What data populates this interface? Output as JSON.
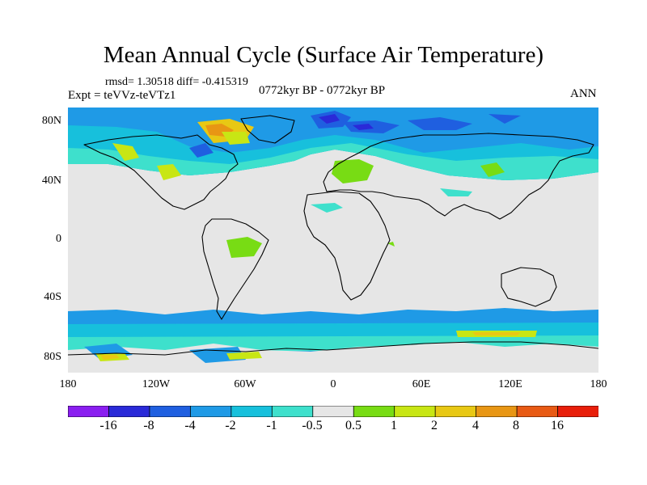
{
  "title": "Mean Annual Cycle (Surface Air Temperature)",
  "stats": "rmsd= 1.30518 diff= -0.415319",
  "experiment": "Expt = teVVz-teVTz1",
  "period": "0772kyr BP - 0772kyr BP",
  "season": "ANN",
  "axes": {
    "lat_ticks": [
      "80N",
      "40N",
      "0",
      "40S",
      "80S"
    ],
    "lon_ticks": [
      "180",
      "120W",
      "60W",
      "0",
      "60E",
      "120E",
      "180"
    ]
  },
  "colorbar": {
    "labels": [
      "-16",
      "-8",
      "-4",
      "-2",
      "-1",
      "-0.5",
      "0.5",
      "1",
      "2",
      "4",
      "8",
      "16"
    ],
    "colors": [
      "#8a1ef0",
      "#2a2ad8",
      "#1f5fe0",
      "#1f9ae6",
      "#17c0dc",
      "#3ee0cc",
      "#e6e6e6",
      "#78dc14",
      "#c8e614",
      "#e8c814",
      "#e89614",
      "#e85a14",
      "#e81e0a"
    ]
  },
  "colors": {
    "ocean_neutral": "#e6e6e6",
    "coast_line": "#000000"
  }
}
